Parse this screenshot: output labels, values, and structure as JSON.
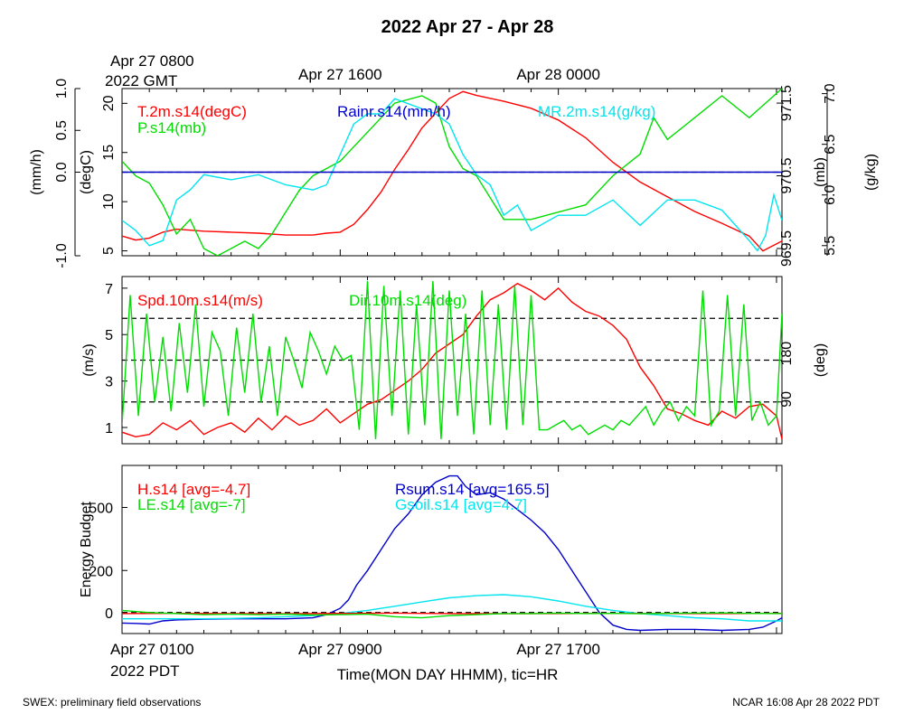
{
  "title": "2022 Apr 27 - Apr 28",
  "top_axis": {
    "ticks": [
      {
        "label": "Apr 27 0800",
        "sub": "2022 GMT",
        "x": 0
      },
      {
        "label": "Apr 27 1600",
        "x": 8
      },
      {
        "label": "Apr 28 0000",
        "x": 16
      }
    ]
  },
  "bottom_axis": {
    "label": "Time(MON DAY HHMM), tic=HR",
    "ticks": [
      {
        "label": "Apr 27 0100",
        "sub": "2022 PDT",
        "x": 0
      },
      {
        "label": "Apr 27 0900",
        "x": 8
      },
      {
        "label": "Apr 27 1700",
        "x": 16
      }
    ],
    "xlim": [
      0,
      24.2
    ]
  },
  "footer": {
    "left": "SWEX: preliminary field observations",
    "right": "NCAR 16:08 Apr 28 2022 PDT"
  },
  "colors": {
    "red": "#ff0000",
    "green": "#00dd00",
    "blue": "#0000cc",
    "cyan": "#00e5ee",
    "black": "#000000"
  },
  "chart_data": [
    {
      "type": "line",
      "panel": "top",
      "legend": [
        {
          "text": "T.2m.s14(degC)",
          "color": "red"
        },
        {
          "text": "P.s14(mb)",
          "color": "green"
        },
        {
          "text": "Rainr.s14(mm/h)",
          "color": "blue"
        },
        {
          "text": "MR.2m.s14(g/kg)",
          "color": "cyan"
        }
      ],
      "axes": {
        "left_outer": {
          "label": "(mm/h)",
          "range": [
            -1.0,
            1.0
          ],
          "ticks": [
            {
              "v": -1.0,
              "t": "-1.0"
            },
            {
              "v": 0.0,
              "t": "0.0"
            },
            {
              "v": 0.5,
              "t": "0.5"
            },
            {
              "v": 1.0,
              "t": "1.0"
            }
          ]
        },
        "left_inner": {
          "label": "(degC)",
          "range": [
            4.5,
            21.5
          ],
          "ticks": [
            {
              "v": 5,
              "t": "5"
            },
            {
              "v": 10,
              "t": "10"
            },
            {
              "v": 15,
              "t": "15"
            },
            {
              "v": 20,
              "t": "20"
            }
          ]
        },
        "right_inner": {
          "label": "(mb)",
          "range": [
            969.4,
            971.7
          ],
          "ticks": [
            {
              "v": 969.5,
              "t": "969.5"
            },
            {
              "v": 970.5,
              "t": "970.5"
            },
            {
              "v": 971.5,
              "t": "971.5"
            }
          ]
        },
        "right_outer": {
          "label": "(g/kg)",
          "range": [
            5.4,
            7.05
          ],
          "ticks": [
            {
              "v": 5.5,
              "t": "5.5"
            },
            {
              "v": 6.0,
              "t": "6.0"
            },
            {
              "v": 6.5,
              "t": "6.5"
            },
            {
              "v": 7.0,
              "t": "7.0"
            }
          ]
        }
      },
      "dashed_refs": [
        {
          "axis": "left_outer",
          "v": 0.0
        }
      ],
      "series": [
        {
          "name": "T.2m.s14(degC)",
          "color": "red",
          "axis": "left_inner",
          "x": [
            0,
            0.5,
            1,
            1.5,
            2,
            2.5,
            3,
            4,
            5,
            6,
            7,
            7.5,
            8,
            8.5,
            9,
            9.5,
            10,
            10.5,
            11,
            11.5,
            12,
            12.5,
            13,
            14,
            15,
            16,
            17,
            18,
            19,
            20,
            21,
            22,
            23,
            23.5,
            24.2
          ],
          "y": [
            6.5,
            6.1,
            6.3,
            6.9,
            7.2,
            7.1,
            7.0,
            6.9,
            6.8,
            6.6,
            6.6,
            6.8,
            6.9,
            7.7,
            9.2,
            11.0,
            13.3,
            15.3,
            17.5,
            19.0,
            20.5,
            21.2,
            20.8,
            20.2,
            19.5,
            18.3,
            16.5,
            14.0,
            12.0,
            10.5,
            9.0,
            7.8,
            6.5,
            5.0,
            6.0
          ]
        },
        {
          "name": "P.s14(mb)",
          "color": "green",
          "axis": "right_inner",
          "x": [
            0,
            0.5,
            1,
            1.5,
            2,
            2.5,
            3,
            3.5,
            4,
            4.5,
            5,
            5.5,
            6,
            6.5,
            7,
            7.5,
            8,
            9,
            10,
            11,
            11.5,
            12,
            12.5,
            13,
            13.5,
            14,
            15,
            16,
            17,
            18,
            19,
            19.5,
            20,
            21,
            22,
            23,
            24.2
          ],
          "y": [
            970.7,
            970.5,
            970.4,
            970.1,
            969.7,
            969.9,
            969.5,
            969.4,
            969.5,
            969.6,
            969.5,
            969.7,
            970.0,
            970.3,
            970.5,
            970.6,
            970.7,
            971.1,
            971.5,
            971.6,
            971.5,
            970.9,
            970.6,
            970.5,
            970.2,
            969.9,
            969.9,
            970.0,
            970.1,
            970.5,
            970.8,
            971.3,
            971.0,
            971.3,
            971.6,
            971.3,
            971.7
          ]
        },
        {
          "name": "MR.2m.s14(g/kg)",
          "color": "cyan",
          "axis": "right_outer",
          "x": [
            0,
            0.5,
            1,
            1.5,
            2,
            2.5,
            3,
            4,
            5,
            6,
            7,
            7.5,
            8,
            8.5,
            9,
            9.5,
            10,
            10.5,
            11,
            11.5,
            12,
            12.5,
            13,
            13.5,
            14,
            14.5,
            15,
            16,
            17,
            18,
            19,
            20,
            21,
            22,
            22.5,
            23,
            23.3,
            23.6,
            23.9,
            24.2
          ],
          "y": [
            5.75,
            5.65,
            5.5,
            5.55,
            5.95,
            6.05,
            6.2,
            6.15,
            6.2,
            6.1,
            6.05,
            6.1,
            6.4,
            6.7,
            6.8,
            6.8,
            6.95,
            6.9,
            6.85,
            6.8,
            6.7,
            6.4,
            6.2,
            6.1,
            5.8,
            5.9,
            5.65,
            5.8,
            5.8,
            5.95,
            5.7,
            5.95,
            5.95,
            5.85,
            5.7,
            5.55,
            5.45,
            5.6,
            6.0,
            5.75
          ]
        },
        {
          "name": "Rainr.s14(mm/h)",
          "color": "blue",
          "axis": "left_outer",
          "x": [
            0,
            24.2
          ],
          "y": [
            0,
            0
          ]
        }
      ]
    },
    {
      "type": "line",
      "panel": "middle",
      "legend": [
        {
          "text": "Spd.10m.s14(m/s)",
          "color": "red"
        },
        {
          "text": "Dir.10m.s14(deg)",
          "color": "green"
        }
      ],
      "axes": {
        "left": {
          "label": "(m/s)",
          "range": [
            0.3,
            7.5
          ],
          "ticks": [
            {
              "v": 1,
              "t": "1"
            },
            {
              "v": 3,
              "t": "3"
            },
            {
              "v": 5,
              "t": "5"
            },
            {
              "v": 7,
              "t": "7"
            }
          ]
        },
        "right": {
          "label": "(deg)",
          "range": [
            0,
            360
          ],
          "ticks": [
            {
              "v": 90,
              "t": "90"
            },
            {
              "v": 180,
              "t": "180"
            }
          ]
        }
      },
      "dashed_refs": [
        {
          "axis": "right",
          "v": 90
        },
        {
          "axis": "right",
          "v": 180
        },
        {
          "axis": "right",
          "v": 270
        }
      ],
      "series": [
        {
          "name": "Spd.10m.s14(m/s)",
          "color": "red",
          "axis": "left",
          "x": [
            0,
            0.5,
            1,
            1.5,
            2,
            2.5,
            3,
            3.5,
            4,
            4.5,
            5,
            5.5,
            6,
            6.5,
            7,
            7.5,
            8,
            8.5,
            9,
            9.5,
            10,
            10.5,
            11,
            11.5,
            12,
            12.5,
            13,
            13.5,
            14,
            14.5,
            15,
            15.5,
            16,
            16.5,
            17,
            17.5,
            18,
            18.5,
            19,
            19.5,
            20,
            20.5,
            21,
            21.5,
            22,
            22.5,
            23,
            23.5,
            24,
            24.2
          ],
          "y": [
            0.8,
            0.6,
            0.7,
            1.2,
            0.9,
            1.3,
            0.7,
            1.0,
            1.2,
            0.8,
            1.4,
            0.9,
            1.5,
            1.1,
            1.3,
            1.8,
            1.2,
            1.6,
            2.0,
            2.2,
            2.6,
            3.0,
            3.5,
            4.2,
            4.6,
            5.0,
            5.8,
            6.5,
            6.8,
            7.2,
            6.9,
            6.5,
            7.0,
            6.4,
            6.0,
            5.8,
            5.4,
            4.8,
            3.6,
            2.8,
            1.8,
            1.6,
            1.3,
            1.1,
            1.7,
            1.4,
            1.9,
            2.0,
            1.5,
            0.5
          ]
        },
        {
          "name": "Dir.10m.s14(deg)",
          "color": "green",
          "axis": "right",
          "x": [
            0,
            0.3,
            0.6,
            0.9,
            1.2,
            1.5,
            1.8,
            2.1,
            2.4,
            2.7,
            3.0,
            3.3,
            3.6,
            3.9,
            4.2,
            4.5,
            4.8,
            5.1,
            5.4,
            5.7,
            6.0,
            6.3,
            6.6,
            6.9,
            7.2,
            7.5,
            7.8,
            8.1,
            8.4,
            8.7,
            9.0,
            9.3,
            9.6,
            9.9,
            10.2,
            10.5,
            10.8,
            11.1,
            11.4,
            11.7,
            12.0,
            12.3,
            12.6,
            12.9,
            13.2,
            13.5,
            13.8,
            14.1,
            14.4,
            14.7,
            15.0,
            15.3,
            15.6,
            15.9,
            16.2,
            16.5,
            16.8,
            17.1,
            17.4,
            17.7,
            18.0,
            18.3,
            18.6,
            18.9,
            19.2,
            19.5,
            19.8,
            20.1,
            20.4,
            20.7,
            21.0,
            21.3,
            21.6,
            21.9,
            22.2,
            22.5,
            22.8,
            23.1,
            23.4,
            23.7,
            24.0,
            24.2
          ],
          "y": [
            40,
            320,
            60,
            280,
            90,
            230,
            70,
            260,
            110,
            300,
            80,
            240,
            200,
            60,
            250,
            110,
            280,
            90,
            210,
            60,
            230,
            180,
            120,
            240,
            200,
            150,
            210,
            180,
            190,
            30,
            350,
            10,
            340,
            60,
            330,
            20,
            300,
            40,
            350,
            10,
            330,
            60,
            280,
            20,
            330,
            40,
            300,
            30,
            340,
            40,
            320,
            30,
            30,
            40,
            50,
            30,
            40,
            20,
            30,
            40,
            30,
            50,
            40,
            60,
            80,
            40,
            70,
            90,
            50,
            80,
            60,
            330,
            40,
            70,
            320,
            60,
            300,
            50,
            90,
            40,
            60,
            280
          ]
        }
      ]
    },
    {
      "type": "line",
      "panel": "bottom",
      "legend": [
        {
          "text": "H.s14 [avg=-4.7]",
          "color": "red"
        },
        {
          "text": "LE.s14 [avg=-7]",
          "color": "green"
        },
        {
          "text": "Rsum.s14 [avg=165.5]",
          "color": "blue"
        },
        {
          "text": "Gsoil.s14 [avg=4.7]",
          "color": "cyan"
        }
      ],
      "axes": {
        "left": {
          "label": "Energy Budget",
          "range": [
            -100,
            700
          ],
          "ticks": [
            {
              "v": 0,
              "t": "0"
            },
            {
              "v": 200,
              "t": "200"
            },
            {
              "v": 500,
              "t": "500"
            }
          ]
        }
      },
      "dashed_refs": [
        {
          "axis": "left",
          "v": 0
        }
      ],
      "series": [
        {
          "name": "Rsum.s14",
          "color": "blue",
          "axis": "left",
          "x": [
            0,
            0.5,
            1,
            1.5,
            2,
            3,
            4,
            5,
            6,
            7,
            7.5,
            8,
            8.3,
            8.6,
            9,
            9.5,
            10,
            10.5,
            11,
            11.5,
            12,
            12.3,
            12.6,
            13,
            13.5,
            14,
            14.5,
            15,
            15.5,
            16,
            16.5,
            17,
            17.5,
            18,
            18.5,
            19,
            20,
            21,
            22,
            23,
            23.5,
            24,
            24.2
          ],
          "y": [
            -50,
            -52,
            -55,
            -40,
            -35,
            -32,
            -30,
            -30,
            -30,
            -25,
            -10,
            20,
            60,
            130,
            200,
            300,
            400,
            470,
            560,
            620,
            650,
            650,
            600,
            560,
            570,
            540,
            490,
            440,
            380,
            300,
            200,
            100,
            0,
            -60,
            -80,
            -85,
            -80,
            -80,
            -85,
            -80,
            -70,
            -40,
            -25
          ]
        },
        {
          "name": "Gsoil.s14",
          "color": "cyan",
          "axis": "left",
          "x": [
            0,
            1,
            2,
            3,
            4,
            5,
            6,
            7,
            8,
            9,
            10,
            11,
            12,
            13,
            14,
            15,
            16,
            17,
            18,
            19,
            20,
            21,
            22,
            23,
            24,
            24.2
          ],
          "y": [
            -30,
            -30,
            -30,
            -30,
            -28,
            -25,
            -20,
            -15,
            -5,
            10,
            30,
            50,
            70,
            80,
            85,
            75,
            55,
            30,
            10,
            -5,
            -15,
            -25,
            -30,
            -40,
            -40,
            -40
          ]
        },
        {
          "name": "H.s14",
          "color": "red",
          "axis": "left",
          "x": [
            0,
            2,
            4,
            6,
            8,
            10,
            12,
            14,
            16,
            18,
            20,
            22,
            24.2
          ],
          "y": [
            -5,
            -4,
            -5,
            -6,
            -4,
            -3,
            -5,
            -6,
            -5,
            -4,
            -5,
            -5,
            -4
          ]
        },
        {
          "name": "LE.s14",
          "color": "green",
          "axis": "left",
          "x": [
            0,
            1,
            2,
            3,
            4,
            5,
            6,
            7,
            8,
            9,
            10,
            11,
            12,
            13,
            14,
            15,
            16,
            17,
            18,
            19,
            20,
            21,
            22,
            23,
            24,
            24.2
          ],
          "y": [
            10,
            0,
            -5,
            -10,
            -8,
            -10,
            -8,
            -12,
            -10,
            -8,
            -20,
            -25,
            -15,
            -10,
            -5,
            -5,
            -3,
            -5,
            -4,
            -6,
            -4,
            -3,
            -2,
            -4,
            -5,
            -5
          ]
        }
      ]
    }
  ]
}
